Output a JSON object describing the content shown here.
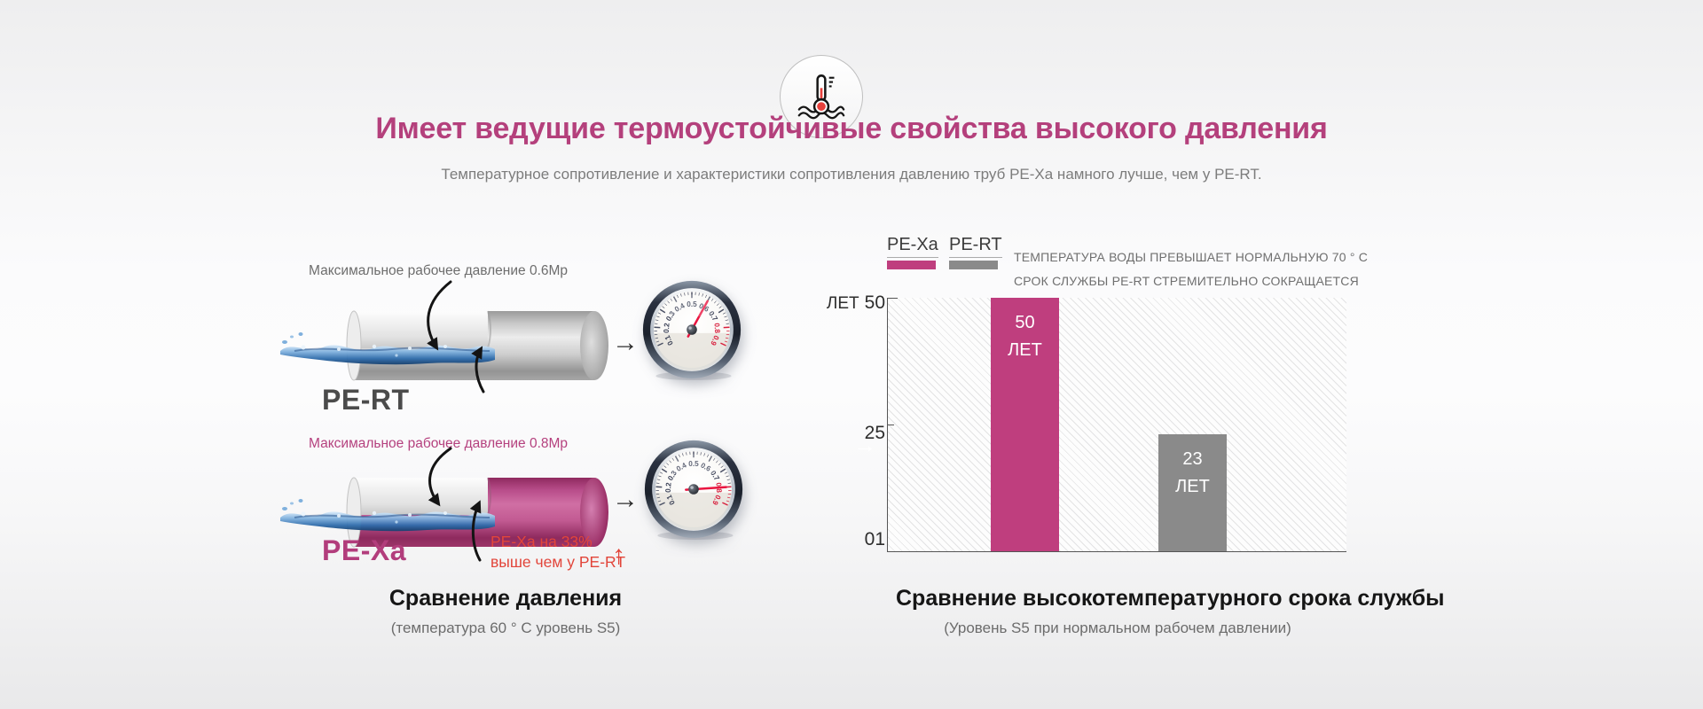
{
  "header": {
    "icon": "thermometer-in-water",
    "title": "Имеет ведущие термоустойчивые свойства высокого давления",
    "subtitle": "Температурное сопротивление и характеристики сопротивления давлению труб PE-Xa намного лучше, чем у PE-RT."
  },
  "pressure_figure": {
    "rows": [
      {
        "name": "PE-RT",
        "annotation": "Максимальное рабочее давление 0.6Мр",
        "gauge_value": 0.6
      },
      {
        "name": "PE-Xa",
        "annotation": "Максимальное рабочее давление 0.8Мр",
        "gauge_value": 0.8
      }
    ],
    "flow_arrow": "→",
    "note": {
      "line1": "PE-Xa на 33%",
      "line2": "выше чем у PE-RT",
      "arrow": "↑"
    },
    "caption": "Сравнение давления",
    "subcaption": "(температура 60 ° C уровень S5)"
  },
  "gauge": {
    "min": 0.1,
    "max": 0.9,
    "red_from": 0.8,
    "labels": [
      "0.1",
      "0.2",
      "0.3",
      "0.4",
      "0.5",
      "0.6",
      "0.7",
      "0.8",
      "0.9"
    ]
  },
  "lifespan_figure": {
    "legend": [
      {
        "label": "PE-Xa"
      },
      {
        "label": "PE-RT"
      }
    ],
    "note_line1": "ТЕМПЕРАТУРА ВОДЫ ПРЕВЫШАЕТ НОРМАЛЬНУЮ 70 ° C",
    "note_line2": "СРОК СЛУЖБЫ PE-RT СТРЕМИТЕЛЬНО СОКРАЩАЕТСЯ",
    "axis_unit": "ЛЕТ",
    "ytick_top": "50",
    "ytick_mid": "25",
    "ytick_bottom": "01",
    "caption": "Сравнение высокотемпературного срока службы",
    "subcaption": "(Уровень S5 при нормальном рабочем давлении)"
  },
  "chart_data": {
    "type": "bar",
    "title": "Сравнение высокотемпературного срока службы",
    "categories": [
      "PE-Xa",
      "PE-RT"
    ],
    "values": [
      50,
      23
    ],
    "bar_labels": [
      {
        "value": "50",
        "unit": "ЛЕТ"
      },
      {
        "value": "23",
        "unit": "ЛЕТ"
      }
    ],
    "colors": [
      "#bf3e7e",
      "#8a8a8a"
    ],
    "ylabel": "ЛЕТ",
    "ylim": [
      0,
      50
    ],
    "yticks": [
      0,
      25,
      50
    ],
    "legend_position": "top-left",
    "grid": "hatched-plot-background",
    "annotation": "ТЕМПЕРАТУРА ВОДЫ ПРЕВЫШАЕТ НОРМАЛЬНУЮ 70 ° C — СРОК СЛУЖБЫ PE-RT СТРЕМИТЕЛЬНО СОКРАЩАЕТСЯ"
  },
  "colors": {
    "accent": "#b4407c",
    "note_red": "#e2453a",
    "pipe_gray": "#9a9a9a",
    "pipe_magenta": "#b84d8a"
  }
}
